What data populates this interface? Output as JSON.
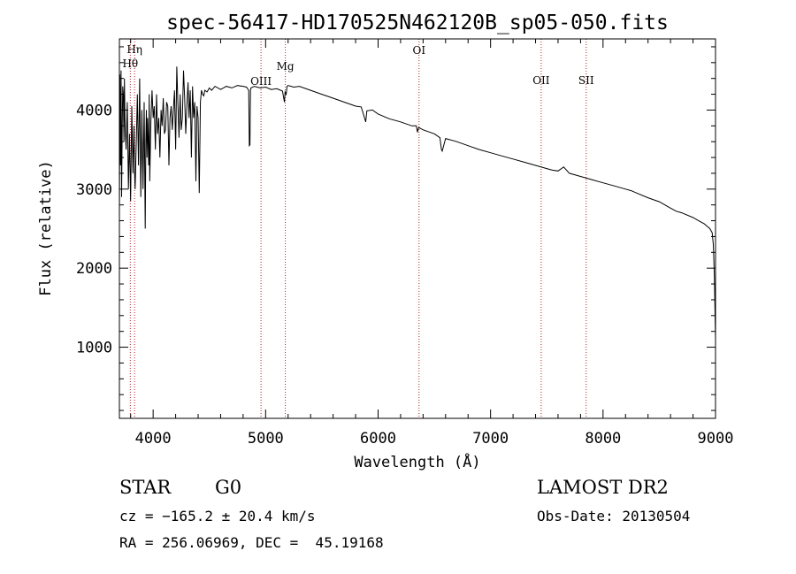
{
  "chart_data": {
    "type": "line",
    "title": "spec-56417-HD170525N462120B_sp05-050.fits",
    "xlabel": "Wavelength (Å)",
    "ylabel": "Flux (relative)",
    "xlim": [
      3700,
      9000
    ],
    "ylim": [
      100,
      4900
    ],
    "xticks": [
      4000,
      5000,
      6000,
      7000,
      8000,
      9000
    ],
    "yticks": [
      1000,
      2000,
      3000,
      4000
    ],
    "xtick_labels": [
      "4000",
      "5000",
      "6000",
      "7000",
      "8000",
      "9000"
    ],
    "ytick_labels": [
      "1000",
      "2000",
      "3000",
      "4000"
    ],
    "line_color": "#000000",
    "marker_color": "#b22222",
    "grid": false,
    "series": [
      {
        "x": [
          3700,
          3705,
          3710,
          3715,
          3720,
          3725,
          3730,
          3735,
          3740,
          3745,
          3750,
          3760,
          3770,
          3780,
          3790,
          3800,
          3810,
          3820,
          3830,
          3835,
          3840,
          3850,
          3860,
          3870,
          3880,
          3890,
          3900,
          3910,
          3920,
          3930,
          3935,
          3940,
          3945,
          3950,
          3960,
          3965,
          3970,
          3980,
          3990,
          4000,
          4010,
          4020,
          4030,
          4040,
          4050,
          4060,
          4070,
          4080,
          4090,
          4100,
          4110,
          4120,
          4130,
          4140,
          4150,
          4160,
          4170,
          4180,
          4190,
          4200,
          4210,
          4220,
          4230,
          4240,
          4250,
          4260,
          4270,
          4280,
          4290,
          4300,
          4310,
          4320,
          4330,
          4340,
          4350,
          4360,
          4370,
          4380,
          4390,
          4400,
          4410,
          4420,
          4430,
          4440,
          4450,
          4460,
          4480,
          4500,
          4520,
          4550,
          4600,
          4650,
          4700,
          4750,
          4800,
          4830,
          4850,
          4855,
          4861,
          4865,
          4870,
          4900,
          4950,
          5000,
          5050,
          5100,
          5150,
          5167,
          5173,
          5183,
          5190,
          5200,
          5250,
          5300,
          5400,
          5500,
          5600,
          5700,
          5800,
          5850,
          5880,
          5890,
          5900,
          5950,
          6000,
          6100,
          6200,
          6300,
          6340,
          6350,
          6360,
          6400,
          6500,
          6550,
          6563,
          6570,
          6600,
          6700,
          6800,
          6900,
          7000,
          7100,
          7200,
          7300,
          7400,
          7500,
          7550,
          7600,
          7650,
          7700,
          7800,
          7900,
          8000,
          8100,
          8200,
          8250,
          8300,
          8400,
          8500,
          8550,
          8600,
          8650,
          8700,
          8800,
          8850,
          8900,
          8950,
          8970,
          8980,
          8990,
          9000
        ],
        "y": [
          2700,
          4450,
          3300,
          4500,
          2900,
          3800,
          4300,
          4200,
          3600,
          4400,
          3800,
          3500,
          4100,
          3000,
          3700,
          2850,
          4050,
          3200,
          3800,
          3200,
          3000,
          3600,
          4200,
          3300,
          4400,
          2900,
          4000,
          3000,
          4100,
          2500,
          3600,
          4000,
          3400,
          3900,
          3300,
          4200,
          3100,
          3850,
          4250,
          3900,
          4050,
          3500,
          4200,
          3700,
          3900,
          3400,
          4000,
          3800,
          4150,
          3700,
          3750,
          4100,
          4050,
          3300,
          3900,
          4050,
          3750,
          4000,
          4250,
          3500,
          4550,
          4100,
          3650,
          4200,
          3750,
          3900,
          4500,
          4150,
          3700,
          4050,
          4350,
          3900,
          4250,
          3400,
          4300,
          3900,
          4100,
          3100,
          4050,
          3900,
          2950,
          4100,
          4250,
          4200,
          4180,
          4250,
          4230,
          4280,
          4250,
          4300,
          4260,
          4300,
          4280,
          4310,
          4300,
          4290,
          4250,
          3550,
          3560,
          4250,
          4280,
          4300,
          4280,
          4290,
          4260,
          4270,
          4240,
          4100,
          4230,
          4200,
          4300,
          4310,
          4290,
          4300,
          4250,
          4200,
          4150,
          4100,
          4050,
          4040,
          3900,
          3850,
          3990,
          4000,
          3950,
          3890,
          3850,
          3800,
          3800,
          3720,
          3780,
          3750,
          3700,
          3650,
          3500,
          3480,
          3640,
          3600,
          3550,
          3500,
          3460,
          3420,
          3380,
          3340,
          3300,
          3260,
          3240,
          3230,
          3280,
          3200,
          3160,
          3120,
          3080,
          3040,
          3000,
          2980,
          2950,
          2890,
          2840,
          2800,
          2760,
          2720,
          2700,
          2640,
          2600,
          2560,
          2500,
          2450,
          2300,
          1900,
          1100
        ]
      }
    ],
    "line_markers": [
      {
        "label": "Hη",
        "x": 3835
      },
      {
        "label": "Hθ",
        "x": 3797
      },
      {
        "label": "OIII",
        "x": 4959
      },
      {
        "label": "Mg",
        "x": 5175
      },
      {
        "label": "OI",
        "x": 6364
      },
      {
        "label": "OII",
        "x": 7450
      },
      {
        "label": "SII",
        "x": 7850
      }
    ]
  },
  "info": {
    "object_class": "STAR",
    "subclass": "G0",
    "cz": "cz = −165.2 ± 20.4 km/s",
    "coords": "RA = 256.06969, DEC =  45.19168",
    "survey": "LAMOST DR2",
    "obs_date": "Obs-Date: 20130504"
  }
}
